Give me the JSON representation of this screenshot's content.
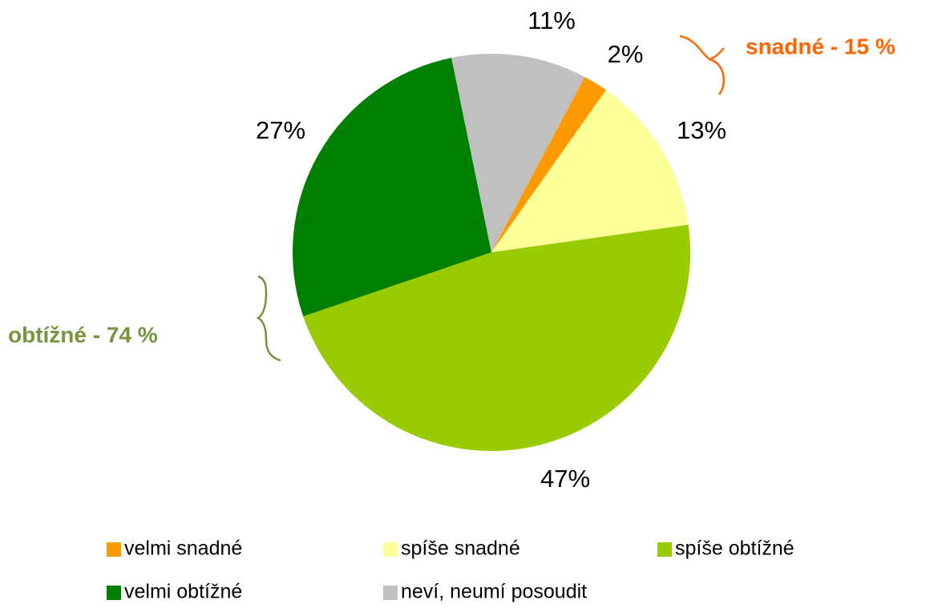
{
  "chart_data": {
    "type": "pie",
    "categories": [
      "velmi snadné",
      "spíše snadné",
      "spíše obtížné",
      "velmi obtížné",
      "neví, neumí posoudit"
    ],
    "values": [
      2,
      13,
      47,
      27,
      11
    ],
    "value_labels": [
      "2%",
      "13%",
      "47%",
      "27%",
      "11%"
    ],
    "colors": [
      "#ff9900",
      "#ffff99",
      "#99cc00",
      "#008000",
      "#c0c0c0"
    ],
    "annotations": [
      "snadné - 15 %",
      "obtížné - 74 %"
    ]
  }
}
